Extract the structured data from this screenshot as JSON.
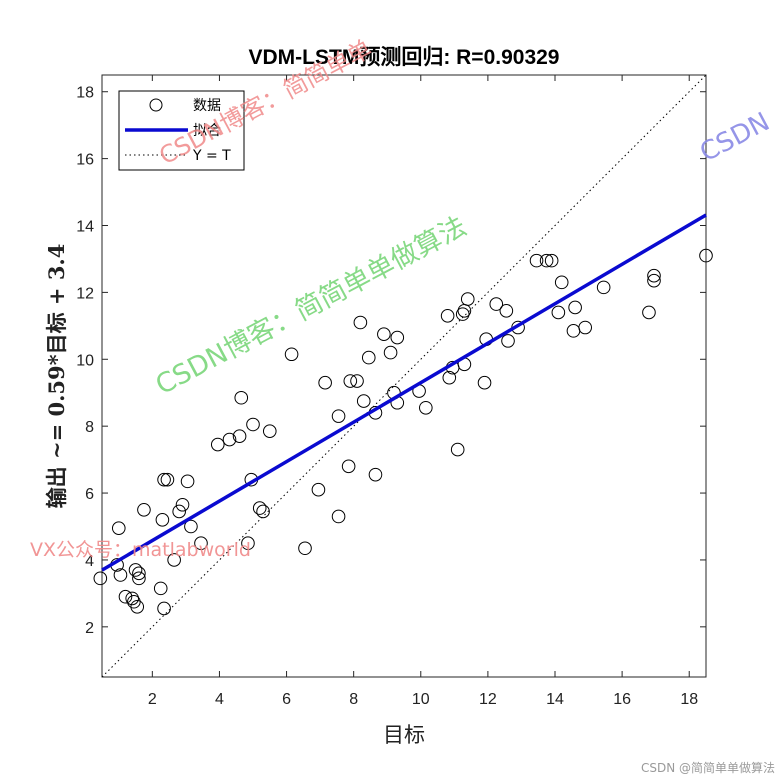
{
  "chart_data": {
    "type": "scatter",
    "title": "VDM-LSTM预测回归: R=0.90329",
    "xlabel": "目标",
    "ylabel": "输出 ~= 0.59*目标 + 3.4",
    "xlim": [
      0.5,
      18.5
    ],
    "ylim": [
      0.5,
      18.5
    ],
    "xticks": [
      2,
      4,
      6,
      8,
      10,
      12,
      14,
      16,
      18
    ],
    "yticks": [
      2,
      4,
      6,
      8,
      10,
      12,
      14,
      16,
      18
    ],
    "grid": false,
    "legend_position": "top-left",
    "legend": [
      {
        "label": "数据",
        "style": "circle",
        "color": "#000000"
      },
      {
        "label": "拟合",
        "style": "line",
        "color": "#0000cc"
      },
      {
        "label": "Y = T",
        "style": "dotted",
        "color": "#000000"
      }
    ],
    "fit": {
      "slope": 0.59,
      "intercept": 3.4,
      "x_range": [
        0.5,
        18.5
      ]
    },
    "identity_line": {
      "x_range": [
        0.5,
        18.5
      ]
    },
    "points": [
      [
        0.45,
        3.45
      ],
      [
        0.95,
        3.85
      ],
      [
        1.05,
        3.55
      ],
      [
        1.0,
        4.95
      ],
      [
        1.2,
        2.9
      ],
      [
        1.4,
        2.85
      ],
      [
        1.45,
        2.75
      ],
      [
        1.5,
        3.7
      ],
      [
        1.55,
        2.6
      ],
      [
        1.6,
        3.6
      ],
      [
        1.6,
        3.45
      ],
      [
        1.75,
        5.5
      ],
      [
        2.25,
        3.15
      ],
      [
        2.3,
        5.2
      ],
      [
        2.35,
        2.55
      ],
      [
        2.35,
        6.4
      ],
      [
        2.45,
        6.4
      ],
      [
        2.65,
        4.0
      ],
      [
        2.8,
        5.45
      ],
      [
        2.9,
        5.65
      ],
      [
        3.05,
        6.35
      ],
      [
        3.15,
        5.0
      ],
      [
        3.45,
        4.5
      ],
      [
        3.95,
        7.45
      ],
      [
        4.3,
        7.6
      ],
      [
        4.6,
        7.7
      ],
      [
        4.65,
        8.85
      ],
      [
        4.85,
        4.5
      ],
      [
        4.95,
        6.4
      ],
      [
        5.0,
        8.05
      ],
      [
        5.2,
        5.55
      ],
      [
        5.3,
        5.45
      ],
      [
        5.5,
        7.85
      ],
      [
        6.15,
        10.15
      ],
      [
        6.55,
        4.35
      ],
      [
        6.95,
        6.1
      ],
      [
        7.15,
        9.3
      ],
      [
        7.55,
        8.3
      ],
      [
        7.55,
        5.3
      ],
      [
        7.85,
        6.8
      ],
      [
        7.9,
        9.35
      ],
      [
        8.1,
        9.35
      ],
      [
        8.2,
        11.1
      ],
      [
        8.3,
        8.75
      ],
      [
        8.45,
        10.05
      ],
      [
        8.65,
        8.4
      ],
      [
        8.65,
        6.55
      ],
      [
        8.9,
        10.75
      ],
      [
        9.1,
        10.2
      ],
      [
        9.2,
        9.0
      ],
      [
        9.3,
        10.65
      ],
      [
        9.3,
        8.7
      ],
      [
        9.95,
        9.05
      ],
      [
        10.15,
        8.55
      ],
      [
        10.8,
        11.3
      ],
      [
        10.85,
        9.45
      ],
      [
        10.95,
        9.75
      ],
      [
        11.1,
        7.3
      ],
      [
        11.25,
        11.35
      ],
      [
        11.3,
        11.45
      ],
      [
        11.3,
        9.85
      ],
      [
        11.4,
        11.8
      ],
      [
        11.9,
        9.3
      ],
      [
        11.95,
        10.6
      ],
      [
        12.25,
        11.65
      ],
      [
        12.55,
        11.45
      ],
      [
        12.6,
        10.55
      ],
      [
        12.9,
        10.95
      ],
      [
        13.45,
        12.95
      ],
      [
        13.75,
        12.95
      ],
      [
        13.9,
        12.95
      ],
      [
        14.1,
        11.4
      ],
      [
        14.2,
        12.3
      ],
      [
        14.55,
        10.85
      ],
      [
        14.6,
        11.55
      ],
      [
        14.9,
        10.95
      ],
      [
        15.45,
        12.15
      ],
      [
        16.8,
        11.4
      ],
      [
        16.95,
        12.5
      ],
      [
        16.95,
        12.35
      ],
      [
        18.5,
        13.1
      ]
    ]
  },
  "watermarks": {
    "green": "CSDN博客：简简单单做算法",
    "red_top": "CSDN博客：简简单单",
    "red_left": "VX公众号：matlabworld",
    "blue_right": "CSDN"
  },
  "footer": "CSDN @简简单单做算法"
}
